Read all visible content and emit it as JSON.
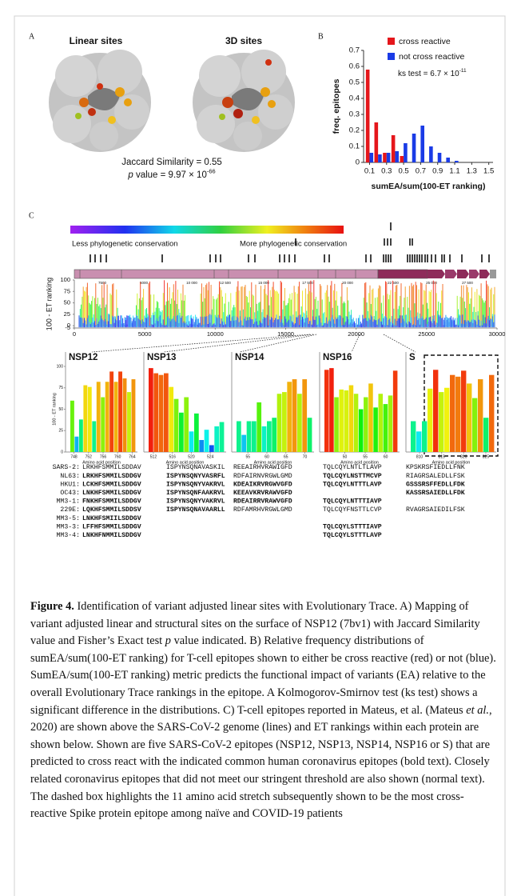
{
  "panel_labels": [
    "A",
    "B",
    "C"
  ],
  "panel_a": {
    "titles": [
      "Linear sites",
      "3D sites"
    ],
    "jaccard": "Jaccard Similarity = 0.55",
    "pvalue": [
      {
        "text": "p",
        "style": "italic"
      },
      {
        "text": " value = 9.97 × 10"
      },
      {
        "text": "-66",
        "style": "sup"
      }
    ]
  },
  "chart_data": {
    "type": "bar",
    "xlabel": "sumEA/sum(100-ET ranking)",
    "ylabel": "freq. epitopes",
    "x": [
      0.1,
      0.2,
      0.3,
      0.4,
      0.5,
      0.6,
      0.7,
      0.8,
      0.9,
      1.0,
      1.1,
      1.2,
      1.3,
      1.4,
      1.5
    ],
    "series": [
      {
        "name": "cross reactive",
        "color": "#e5161b",
        "values": [
          0.58,
          0.25,
          0.06,
          0.17,
          0.04,
          0,
          0,
          0,
          0,
          0,
          0,
          0,
          0,
          0,
          0
        ]
      },
      {
        "name": "not cross reactive",
        "color": "#1a3be6",
        "values": [
          0.06,
          0.05,
          0.06,
          0.07,
          0.12,
          0.18,
          0.23,
          0.1,
          0.06,
          0.03,
          0.01,
          0,
          0,
          0,
          0
        ]
      }
    ],
    "xlim": [
      0.03,
      1.55
    ],
    "ylim": [
      0,
      0.7
    ],
    "xticks": [
      0.1,
      0.3,
      0.5,
      0.7,
      0.9,
      1.1,
      1.3,
      1.5
    ],
    "yticks": [
      0,
      0.1,
      0.2,
      0.3,
      0.4,
      0.5,
      0.6,
      0.7
    ],
    "legend": "top-right",
    "annotation": [
      {
        "text": "ks test =  6.7 × 10"
      },
      {
        "text": "-11",
        "style": "sup"
      }
    ]
  },
  "panel_c": {
    "gradient_labels": [
      "Less phylogenetic conservation",
      "More phylogenetic conservation"
    ],
    "genome_labels": [
      "7500",
      "5000",
      "10 000",
      "12 500",
      "15 000",
      "17 500",
      "20 000",
      "22 500",
      "25 000",
      "27 500"
    ],
    "et_plot": {
      "ylabel": "100 - ET ranking",
      "ylim": [
        -5,
        100
      ],
      "yticks": [
        -5,
        0,
        25,
        50,
        75,
        100
      ],
      "xlim": [
        0,
        30000
      ],
      "xticks": [
        0,
        5000,
        10000,
        15000,
        20000,
        25000,
        30000
      ]
    },
    "zoom": {
      "ylabel": "100 - ET ranking",
      "xlabel": "Amino acid position",
      "ylim": [
        0,
        100
      ],
      "yticks": [
        0,
        25,
        50,
        75,
        100
      ],
      "panels": [
        {
          "title": "NSP12",
          "xlim": [
            747,
            765
          ],
          "xticks": [
            748,
            752,
            756,
            760,
            764
          ],
          "values": [
            60,
            18,
            38,
            78,
            76,
            36,
            82,
            64,
            82,
            94,
            82,
            94,
            86,
            70,
            85
          ]
        },
        {
          "title": "NSP13",
          "xlim": [
            511,
            527
          ],
          "xticks": [
            512,
            516,
            520,
            524
          ],
          "values": [
            98,
            92,
            90,
            92,
            76,
            62,
            46,
            64,
            24,
            45,
            14,
            26,
            8,
            30,
            35
          ]
        },
        {
          "title": "NSP14",
          "xlim": [
            52,
            72
          ],
          "xticks": [
            55,
            60,
            65,
            70
          ],
          "values": [
            36,
            20,
            36,
            36,
            58,
            30,
            36,
            40,
            68,
            70,
            82,
            85,
            68,
            85,
            40
          ]
        },
        {
          "title": "NSP16",
          "xlim": [
            45,
            63
          ],
          "xticks": [
            50,
            55,
            60
          ],
          "values": [
            96,
            98,
            64,
            73,
            72,
            78,
            68,
            50,
            64,
            80,
            52,
            68,
            56,
            66,
            95
          ]
        },
        {
          "title": "S",
          "xlim": [
            808,
            827
          ],
          "xticks": [
            810,
            815,
            820,
            825
          ],
          "values": [
            36,
            24,
            36,
            74,
            96,
            70,
            75,
            90,
            88,
            95,
            80,
            63,
            85,
            40,
            90
          ]
        }
      ]
    }
  },
  "table": {
    "rows": [
      {
        "label": "SARS-2:",
        "cells": [
          {
            "text": "LRKHFSMMILSDDAV",
            "bold": false
          },
          {
            "text": "ISPYNSQNAVASKIL",
            "bold": false
          },
          {
            "text": "REEAIRHVRAWIGFD",
            "bold": false
          },
          {
            "text": "TQLCQYLNTLTLAVP",
            "bold": false
          },
          {
            "text": "KPSKRSFIEDLLFNK",
            "bold": false
          }
        ]
      },
      {
        "label": "NL63:",
        "cells": [
          {
            "text": "LRKHFSMMILSDDGV",
            "bold": true
          },
          {
            "text": "ISPYNSQNYVASRFL",
            "bold": true
          },
          {
            "text": "RDFAIRNVRGWLGMD",
            "bold": false
          },
          {
            "text": "TQLCQYLNSTTMCVP",
            "bold": true
          },
          {
            "text": "RIAGRSALEDLLFSK",
            "bold": false
          }
        ]
      },
      {
        "label": "HKU1:",
        "cells": [
          {
            "text": "LCKHFSMMILSDDGV",
            "bold": true
          },
          {
            "text": "ISPYNSQNYVAKRVL",
            "bold": true
          },
          {
            "text": "KDEAIKRVRGWVGFD",
            "bold": true
          },
          {
            "text": "TQLCQYLNTTTLAVP",
            "bold": true
          },
          {
            "text": "GSSSRSFFEDLLFDK",
            "bold": true
          }
        ]
      },
      {
        "label": "OC43:",
        "cells": [
          {
            "text": "LNKHFSMMILSDDGV",
            "bold": true
          },
          {
            "text": "ISPYNSQNFAAKRVL",
            "bold": true
          },
          {
            "text": "KEEAVKRVRAWVGFD",
            "bold": true
          },
          null,
          {
            "text": "KASSRSAIEDLLFDK",
            "bold": true
          }
        ]
      },
      {
        "label": "MM3-1:",
        "cells": [
          {
            "text": "FNKHFSMMILSDDGV",
            "bold": true
          },
          {
            "text": "ISPYNSQNYVAKRVL",
            "bold": true
          },
          {
            "text": "RDEAIRRVRAWVGFD",
            "bold": true
          },
          {
            "text": "TQLCQYLNTTTIAVP",
            "bold": true
          },
          null
        ]
      },
      {
        "label": "229E:",
        "cells": [
          {
            "text": "LQKHFSMMILSDDSV",
            "bold": true
          },
          {
            "text": "ISPYNSQNAVAARLL",
            "bold": true
          },
          {
            "text": "RDFAMRHVRGWLGMD",
            "bold": false
          },
          {
            "text": "TQLCQYFNSTTLCVP",
            "bold": false
          },
          {
            "text": "RVAGRSAIEDILFSK",
            "bold": false
          }
        ]
      },
      {
        "label": "MM3-5:",
        "cells": [
          {
            "text": "LNKHFSMIILSDDGV",
            "bold": true
          },
          null,
          null,
          null,
          null
        ]
      },
      {
        "label": "MM3-3:",
        "cells": [
          {
            "text": "LFFHFSMMILSDDGV",
            "bold": true
          },
          null,
          null,
          {
            "text": "TQLCQYLSTTTIAVP",
            "bold": true
          },
          null
        ]
      },
      {
        "label": "MM3-4:",
        "cells": [
          {
            "text": "LNKHFNMMILSDDGV",
            "bold": true
          },
          null,
          null,
          {
            "text": "TQLCQYLSTTTLAVP",
            "bold": true
          },
          null
        ]
      }
    ]
  },
  "caption": {
    "segments": [
      {
        "text": "Figure 4.",
        "style": "bold"
      },
      {
        "text": " Identification of variant adjusted linear sites with Evolutionary Trace. A) Mapping of variant adjusted linear and structural sites on the surface of NSP12 (7bv1) with Jaccard Similarity value and Fisher’s Exact test "
      },
      {
        "text": "p",
        "style": "italic"
      },
      {
        "text": " value indicated. B) Relative frequency distributions of sumEA/sum(100-ET ranking) for T-cell epitopes shown to either be cross reactive (red) or not (blue). SumEA/sum(100-ET ranking) metric predicts the functional impact of variants (EA) relative to the overall Evolutionary Trace rankings in the epitope.  A Kolmogorov-Smirnov test (ks test) shows a significant difference in the distributions. C) T-cell epitopes reported in Mateus, et al. (Mateus "
      },
      {
        "text": "et al.",
        "style": "italic"
      },
      {
        "text": ", 2020) are shown above the SARS-CoV-2 genome (lines) and ET rankings within each protein are shown below. Shown are five SARS-CoV-2 epitopes (NSP12, NSP13, NSP14, NSP16 or S) that are predicted to cross react with the indicated common human coronavirus epitopes (bold text). Closely related coronavirus epitopes that did not meet our stringent threshold are also shown (normal text).  The dashed box highlights the 11 amino acid stretch subsequently shown to be the most cross-reactive Spike protein epitope among naïve and COVID-19 patients"
      }
    ]
  }
}
